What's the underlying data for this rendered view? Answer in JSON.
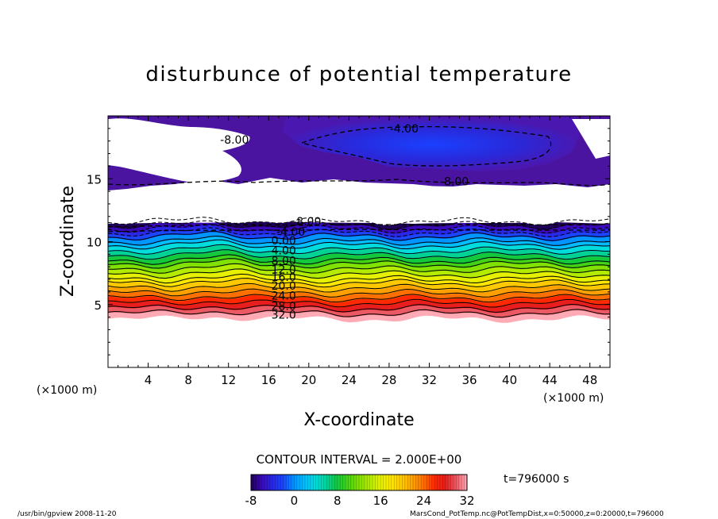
{
  "chart_data": {
    "type": "heatmap",
    "title": "disturbunce of potential temperature",
    "xlabel": "X-coordinate",
    "ylabel": "Z-coordinate",
    "x_unit": "(×1000 m)",
    "y_unit": "(×1000 m)",
    "xlim": [
      0,
      50
    ],
    "ylim": [
      0,
      20
    ],
    "x_ticks": [
      "4",
      "8",
      "12",
      "16",
      "20",
      "24",
      "28",
      "32",
      "36",
      "40",
      "44",
      "48"
    ],
    "y_ticks": [
      "5",
      "10",
      "15"
    ],
    "contour_interval_text": "CONTOUR INTERVAL = 2.000E+00",
    "colorbar": {
      "min": -8,
      "max": 32,
      "ticks": [
        "-8",
        "0",
        "8",
        "16",
        "24",
        "32"
      ]
    },
    "contour_labels": [
      {
        "text": "-4.00",
        "x": 29.5,
        "z": 19.0
      },
      {
        "text": "-8.00",
        "x": 12.6,
        "z": 18.1
      },
      {
        "text": "-8.00",
        "x": 34.5,
        "z": 14.8
      },
      {
        "text": "-8.00",
        "x": 19.8,
        "z": 11.6
      },
      {
        "text": "-4.00",
        "x": 18.2,
        "z": 10.8
      },
      {
        "text": "0.00",
        "x": 17.5,
        "z": 10.1
      },
      {
        "text": "4.00",
        "x": 17.5,
        "z": 9.3
      },
      {
        "text": "8.00",
        "x": 17.5,
        "z": 8.5
      },
      {
        "text": "12.0",
        "x": 17.5,
        "z": 7.8
      },
      {
        "text": "16.0",
        "x": 17.5,
        "z": 7.2
      },
      {
        "text": "20.0",
        "x": 17.5,
        "z": 6.5
      },
      {
        "text": "24.0",
        "x": 17.5,
        "z": 5.7
      },
      {
        "text": "28.0",
        "x": 17.5,
        "z": 4.9
      },
      {
        "text": "32.0",
        "x": 17.5,
        "z": 4.2
      }
    ],
    "layers": [
      {
        "value": 32,
        "z_bottom": 3.9,
        "z_top": 4.3
      },
      {
        "value": 30,
        "z_bottom": 4.3,
        "z_top": 4.7
      },
      {
        "value": 28,
        "z_bottom": 4.7,
        "z_top": 5.1
      },
      {
        "value": 26,
        "z_bottom": 5.1,
        "z_top": 5.5
      },
      {
        "value": 24,
        "z_bottom": 5.5,
        "z_top": 5.9
      },
      {
        "value": 22,
        "z_bottom": 5.9,
        "z_top": 6.3
      },
      {
        "value": 20,
        "z_bottom": 6.3,
        "z_top": 6.7
      },
      {
        "value": 18,
        "z_bottom": 6.7,
        "z_top": 7.0
      },
      {
        "value": 16,
        "z_bottom": 7.0,
        "z_top": 7.4
      },
      {
        "value": 14,
        "z_bottom": 7.4,
        "z_top": 7.8
      },
      {
        "value": 12,
        "z_bottom": 7.8,
        "z_top": 8.2
      },
      {
        "value": 10,
        "z_bottom": 8.2,
        "z_top": 8.5
      },
      {
        "value": 8,
        "z_bottom": 8.5,
        "z_top": 8.9
      },
      {
        "value": 6,
        "z_bottom": 8.9,
        "z_top": 9.3
      },
      {
        "value": 4,
        "z_bottom": 9.3,
        "z_top": 9.7
      },
      {
        "value": 2,
        "z_bottom": 9.7,
        "z_top": 10.0
      },
      {
        "value": 0,
        "z_bottom": 10.0,
        "z_top": 10.4
      },
      {
        "value": -2,
        "z_bottom": 10.4,
        "z_top": 10.7
      },
      {
        "value": -4,
        "z_bottom": 10.7,
        "z_top": 11.0
      },
      {
        "value": -6,
        "z_bottom": 11.0,
        "z_top": 11.3
      },
      {
        "value": -8,
        "z_bottom": 11.3,
        "z_top": 11.6
      }
    ],
    "time_label": "t=796000 s",
    "footer_left": "/usr/bin/gpview   2008-11-20",
    "footer_right": "MarsCond_PotTemp.nc@PotTempDist,x=0:50000,z=0:20000,t=796000"
  }
}
